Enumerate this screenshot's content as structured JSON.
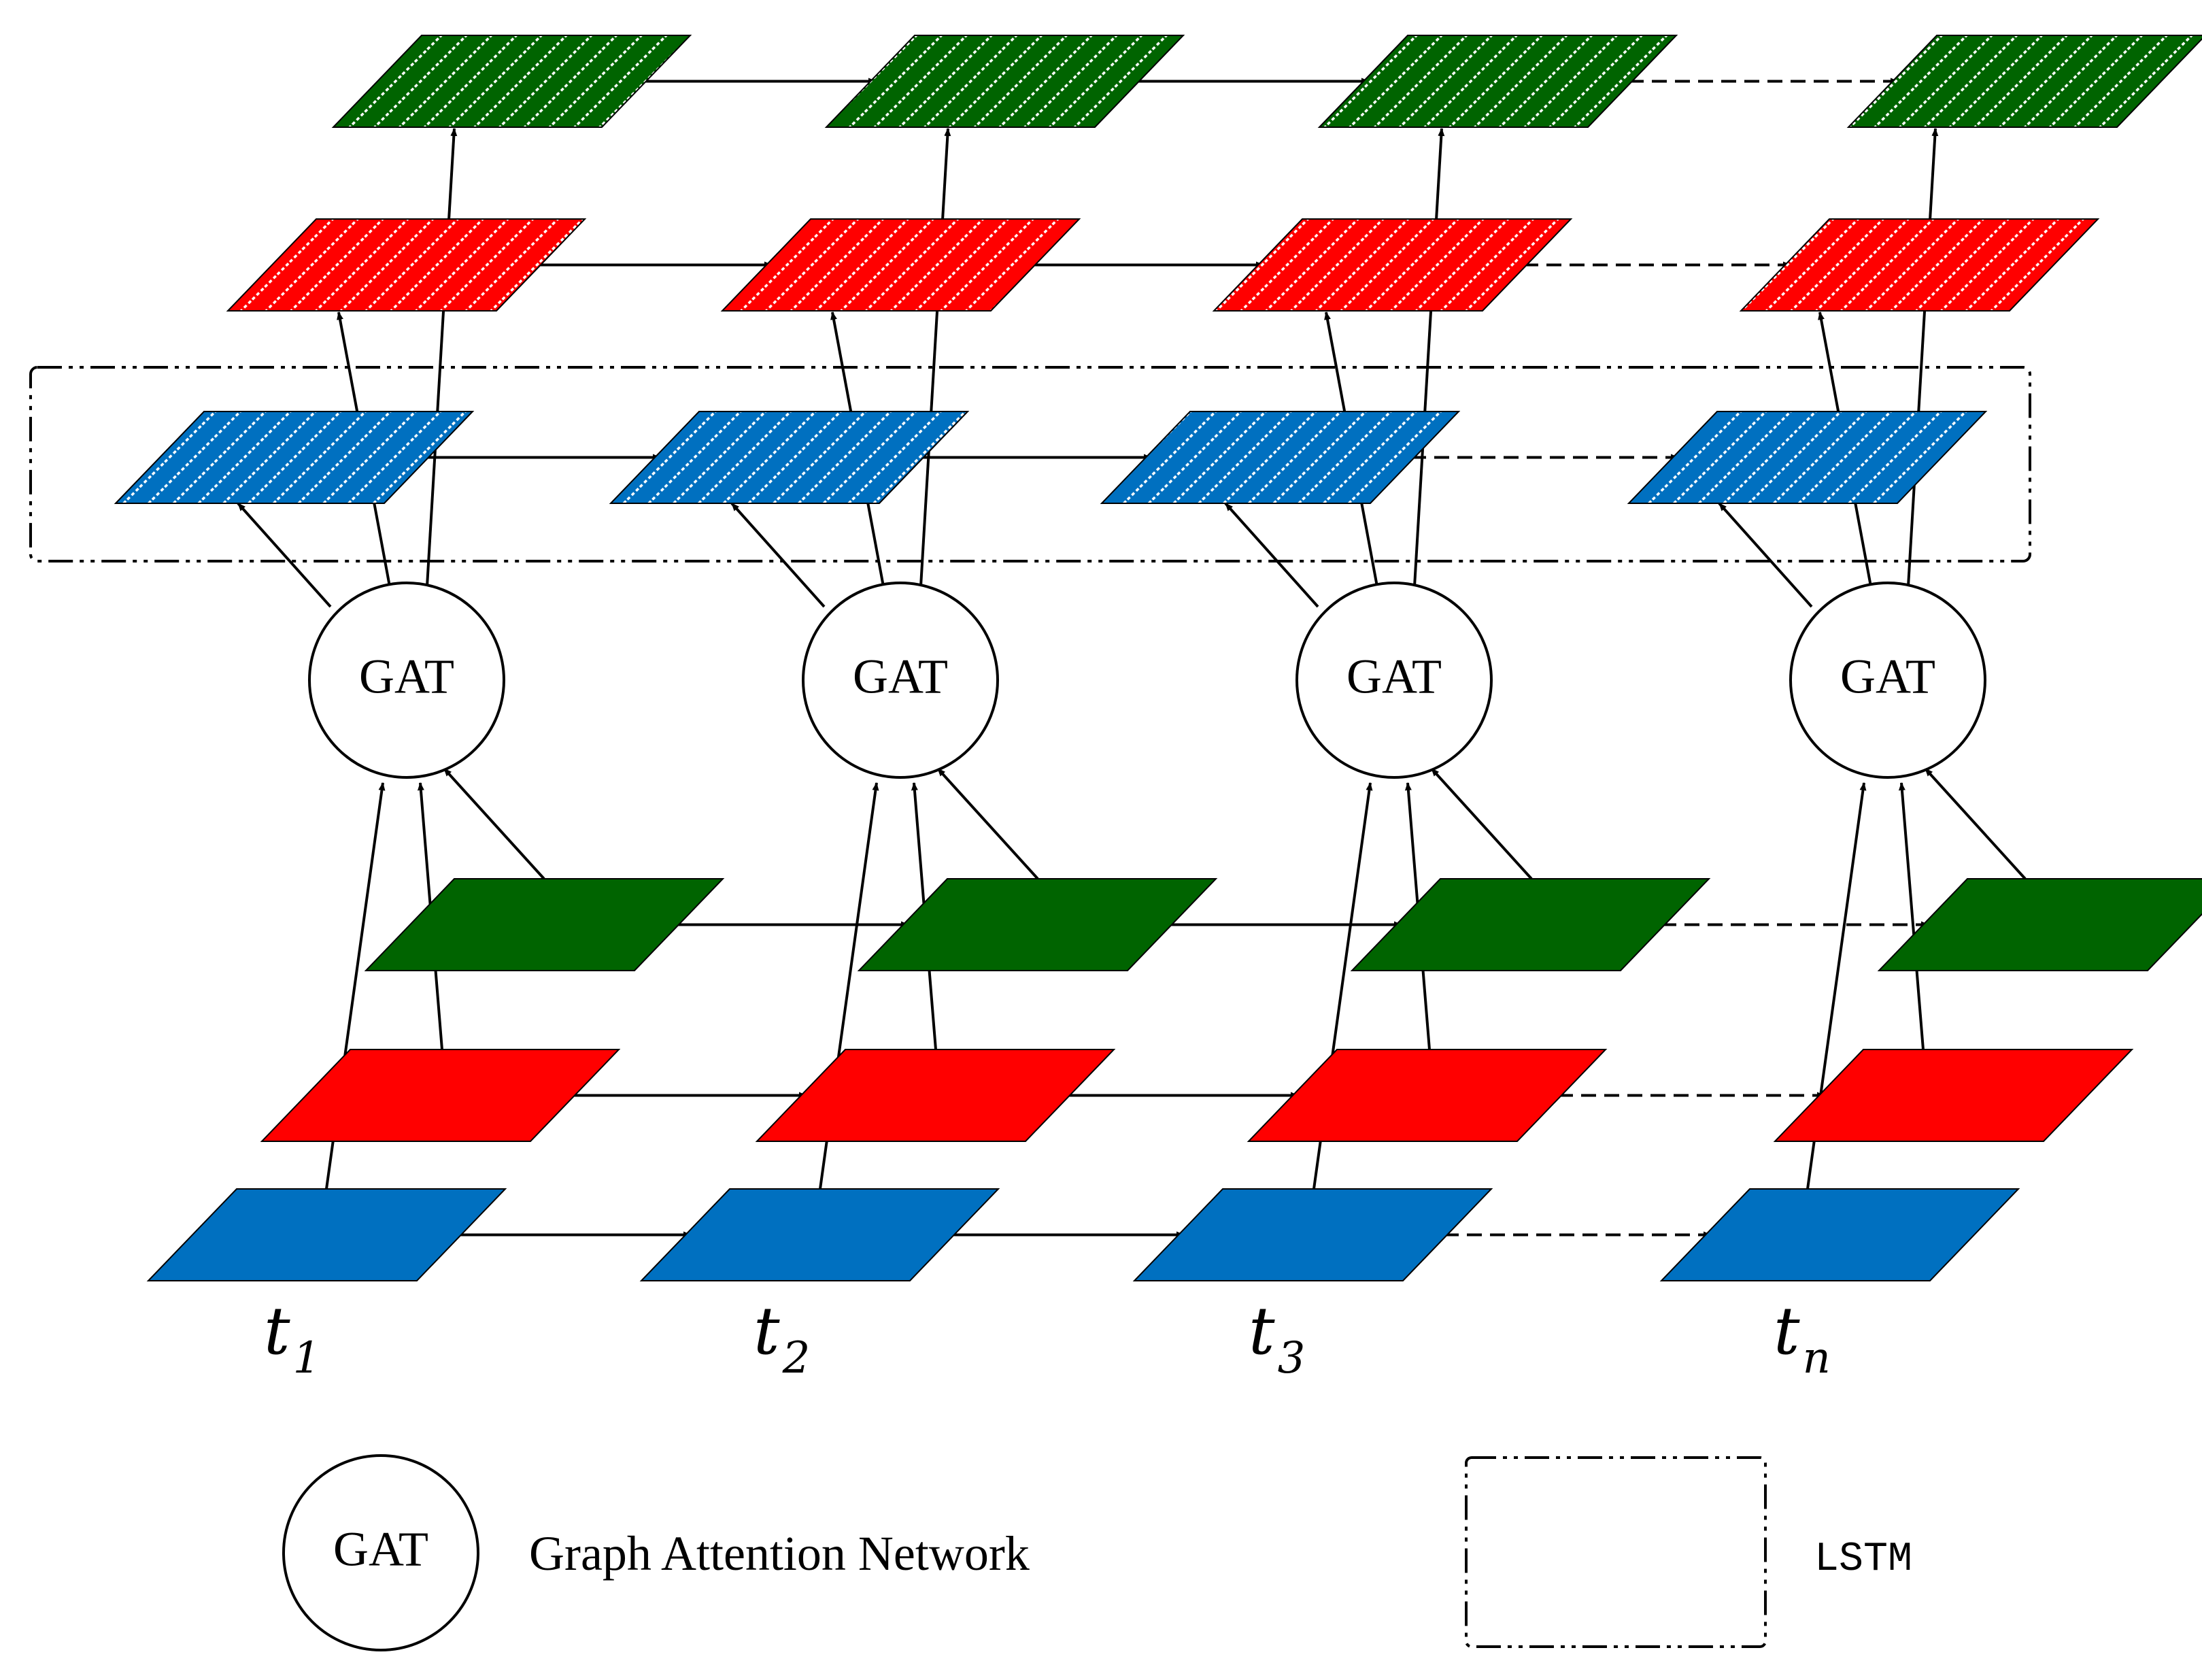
{
  "colors": {
    "blue": "#0070C0",
    "red": "#FF0000",
    "green": "#006400",
    "stroke": "#000000",
    "background": "#FFFFFF"
  },
  "diagram": {
    "node_label": "GAT",
    "time_steps": [
      {
        "base": "t",
        "sub": "1"
      },
      {
        "base": "t",
        "sub": "2"
      },
      {
        "base": "t",
        "sub": "3"
      },
      {
        "base": "t",
        "sub": "n"
      }
    ],
    "input_rows": [
      "green",
      "red",
      "blue"
    ],
    "hidden_rows": [
      "green",
      "red",
      "blue"
    ]
  },
  "legend": {
    "gat_symbol_label": "GAT",
    "gat_description": "Graph Attention Network",
    "lstm_description": "LSTM"
  }
}
